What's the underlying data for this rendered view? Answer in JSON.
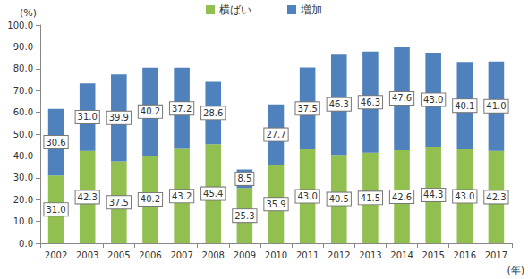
{
  "chart_data": {
    "type": "bar",
    "stacked": true,
    "data_labels": true,
    "grid": false,
    "legend": "top",
    "y_label": "(%)",
    "x_label": "(年)",
    "categories": [
      "2002",
      "2003",
      "2005",
      "2006",
      "2007",
      "2008",
      "2009",
      "2010",
      "2011",
      "2012",
      "2013",
      "2014",
      "2015",
      "2016",
      "2017"
    ],
    "series": [
      {
        "name": "横ばい",
        "color": "#92c050",
        "values": [
          31.0,
          42.3,
          37.5,
          40.2,
          43.2,
          45.4,
          25.3,
          35.9,
          43.0,
          40.5,
          41.5,
          42.6,
          44.3,
          43.0,
          42.3
        ],
        "value_labels": [
          "31.0",
          "42.3",
          "37.5",
          "40.2",
          "43.2",
          "45.4",
          "25.3",
          "35.9",
          "43.0",
          "40.5",
          "41.5",
          "42.6",
          "44.3",
          "43.0",
          "42.3"
        ]
      },
      {
        "name": "増加",
        "color": "#4f81bd",
        "values": [
          30.6,
          31.0,
          39.9,
          40.2,
          37.2,
          28.6,
          8.5,
          27.7,
          37.5,
          46.3,
          46.3,
          47.6,
          43.0,
          40.1,
          41.0
        ],
        "value_labels": [
          "30.6",
          "31.0",
          "39.9",
          "40.2",
          "37.2",
          "28.6",
          "8.5",
          "27.7",
          "37.5",
          "46.3",
          "46.3",
          "47.6",
          "43.0",
          "40.1",
          "41.0"
        ]
      }
    ],
    "ylim": [
      0,
      100
    ],
    "yticks": [
      {
        "value": 0,
        "label": "0.0"
      },
      {
        "value": 10,
        "label": "10.0"
      },
      {
        "value": 20,
        "label": "20.0"
      },
      {
        "value": 30,
        "label": "30.0"
      },
      {
        "value": 40,
        "label": "40.0"
      },
      {
        "value": 50,
        "label": "50.0"
      },
      {
        "value": 60,
        "label": "60.0"
      },
      {
        "value": 70,
        "label": "70.0"
      },
      {
        "value": 80,
        "label": "80.0"
      },
      {
        "value": 90,
        "label": "90.0"
      },
      {
        "value": 100,
        "label": "100.0"
      }
    ]
  }
}
